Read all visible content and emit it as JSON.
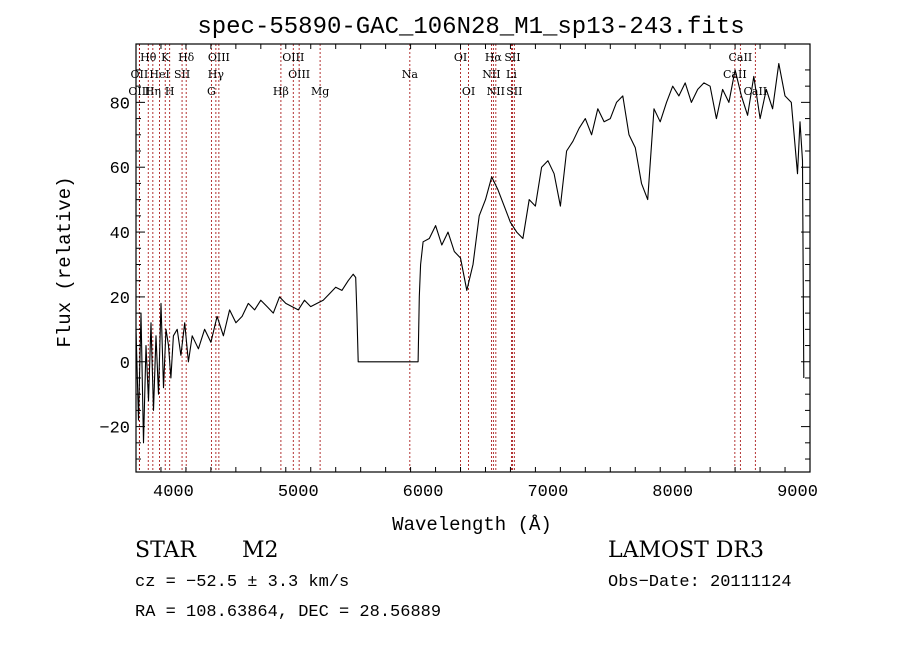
{
  "chart_data": {
    "type": "line",
    "title": "spec-55890-GAC_106N28_M1_sp13-243.fits",
    "xlabel": "Wavelength (Å)",
    "ylabel": "Flux (relative)",
    "xlim": [
      3700,
      9100
    ],
    "ylim": [
      -34,
      98
    ],
    "xticks": [
      4000,
      5000,
      6000,
      7000,
      8000,
      9000
    ],
    "yticks": [
      -20,
      0,
      20,
      40,
      60,
      80
    ],
    "series": [
      {
        "name": "spectrum",
        "x": [
          3700,
          3720,
          3740,
          3760,
          3780,
          3800,
          3820,
          3840,
          3860,
          3880,
          3900,
          3920,
          3940,
          3960,
          3980,
          4000,
          4030,
          4060,
          4090,
          4120,
          4150,
          4200,
          4250,
          4300,
          4350,
          4400,
          4450,
          4500,
          4550,
          4600,
          4650,
          4700,
          4750,
          4800,
          4850,
          4900,
          4950,
          5000,
          5050,
          5100,
          5150,
          5200,
          5250,
          5300,
          5350,
          5400,
          5440,
          5460,
          5470,
          5480,
          5500,
          5600,
          5700,
          5800,
          5900,
          5950,
          5960,
          5970,
          5980,
          6000,
          6050,
          6100,
          6150,
          6200,
          6250,
          6300,
          6350,
          6400,
          6450,
          6500,
          6550,
          6600,
          6650,
          6700,
          6750,
          6800,
          6850,
          6900,
          6950,
          7000,
          7050,
          7100,
          7150,
          7200,
          7250,
          7300,
          7350,
          7400,
          7450,
          7500,
          7550,
          7600,
          7650,
          7700,
          7750,
          7800,
          7850,
          7900,
          7950,
          8000,
          8050,
          8100,
          8150,
          8200,
          8250,
          8300,
          8350,
          8400,
          8450,
          8500,
          8550,
          8600,
          8650,
          8700,
          8750,
          8800,
          8850,
          8900,
          8950,
          9000,
          9020,
          9040,
          9050
        ],
        "y": [
          10,
          -18,
          15,
          -25,
          5,
          -12,
          12,
          -15,
          8,
          -10,
          18,
          -8,
          10,
          5,
          -5,
          8,
          10,
          2,
          12,
          0,
          8,
          4,
          10,
          6,
          14,
          8,
          16,
          12,
          14,
          18,
          16,
          19,
          17,
          15,
          20,
          18,
          17,
          16,
          19,
          17,
          18,
          19,
          21,
          23,
          22,
          25,
          27,
          26,
          15,
          0,
          0,
          0,
          0,
          0,
          0,
          0,
          0,
          20,
          30,
          37,
          38,
          42,
          36,
          40,
          34,
          32,
          22,
          30,
          45,
          50,
          57,
          53,
          48,
          43,
          40,
          38,
          50,
          48,
          60,
          62,
          58,
          48,
          65,
          68,
          72,
          75,
          70,
          78,
          74,
          75,
          80,
          82,
          70,
          66,
          55,
          50,
          78,
          74,
          80,
          85,
          82,
          86,
          80,
          84,
          86,
          85,
          75,
          84,
          80,
          90,
          82,
          76,
          88,
          75,
          84,
          78,
          92,
          82,
          80,
          58,
          74,
          62,
          -5
        ]
      }
    ],
    "lines": [
      {
        "label": "Hθ",
        "wl": 3798,
        "row": 1
      },
      {
        "label": "OII",
        "wl": 3727,
        "row": 2
      },
      {
        "label": "OIII",
        "wl": 3727,
        "row": 3
      },
      {
        "label": "K",
        "wl": 3934,
        "row": 1
      },
      {
        "label": "HeI",
        "wl": 3889,
        "row": 2
      },
      {
        "label": "Hη",
        "wl": 3835,
        "row": 3
      },
      {
        "label": "Hδ",
        "wl": 4102,
        "row": 1
      },
      {
        "label": "SII",
        "wl": 4069,
        "row": 2
      },
      {
        "label": "H",
        "wl": 3970,
        "row": 3
      },
      {
        "label": "OIII",
        "wl": 4364,
        "row": 1
      },
      {
        "label": "Hγ",
        "wl": 4340,
        "row": 2
      },
      {
        "label": "G",
        "wl": 4304,
        "row": 3
      },
      {
        "label": "OIII",
        "wl": 4960,
        "row": 1
      },
      {
        "label": "OIII",
        "wl": 5007,
        "row": 2
      },
      {
        "label": "Hβ",
        "wl": 4861,
        "row": 3
      },
      {
        "label": "Mg",
        "wl": 5175,
        "row": 3
      },
      {
        "label": "Na",
        "wl": 5894,
        "row": 2
      },
      {
        "label": "OI",
        "wl": 6300,
        "row": 1
      },
      {
        "label": "OI",
        "wl": 6364,
        "row": 3
      },
      {
        "label": "Hα",
        "wl": 6563,
        "row": 1
      },
      {
        "label": "NII",
        "wl": 6548,
        "row": 2
      },
      {
        "label": "NII",
        "wl": 6583,
        "row": 3
      },
      {
        "label": "SII",
        "wl": 6716,
        "row": 1
      },
      {
        "label": "Li",
        "wl": 6708,
        "row": 2
      },
      {
        "label": "SII",
        "wl": 6731,
        "row": 3
      },
      {
        "label": "CaII",
        "wl": 8542,
        "row": 1
      },
      {
        "label": "CaII",
        "wl": 8498,
        "row": 2
      },
      {
        "label": "CaII",
        "wl": 8662,
        "row": 3
      }
    ],
    "line_color": "#a00000",
    "spectrum_color": "#000000"
  },
  "info": {
    "object_type": "STAR",
    "subclass": "M2",
    "survey": "LAMOST DR3",
    "cz": "cz = −52.5 ± 3.3 km/s",
    "obs_date": "Obs−Date: 20111124",
    "radec": "RA = 108.63864, DEC =  28.56889"
  }
}
